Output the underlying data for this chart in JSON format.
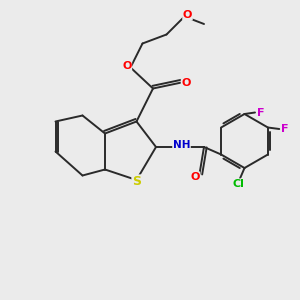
{
  "background_color": "#ebebeb",
  "atom_colors": {
    "O": "#ff0000",
    "N": "#0000cd",
    "S": "#cccc00",
    "Cl": "#00bb00",
    "F": "#cc00cc",
    "C": "#2a2a2a",
    "H": "#666666"
  },
  "bond_color": "#2a2a2a",
  "bond_width": 1.4,
  "figsize": [
    3.0,
    3.0
  ],
  "dpi": 100,
  "xlim": [
    0,
    10
  ],
  "ylim": [
    0,
    10
  ]
}
